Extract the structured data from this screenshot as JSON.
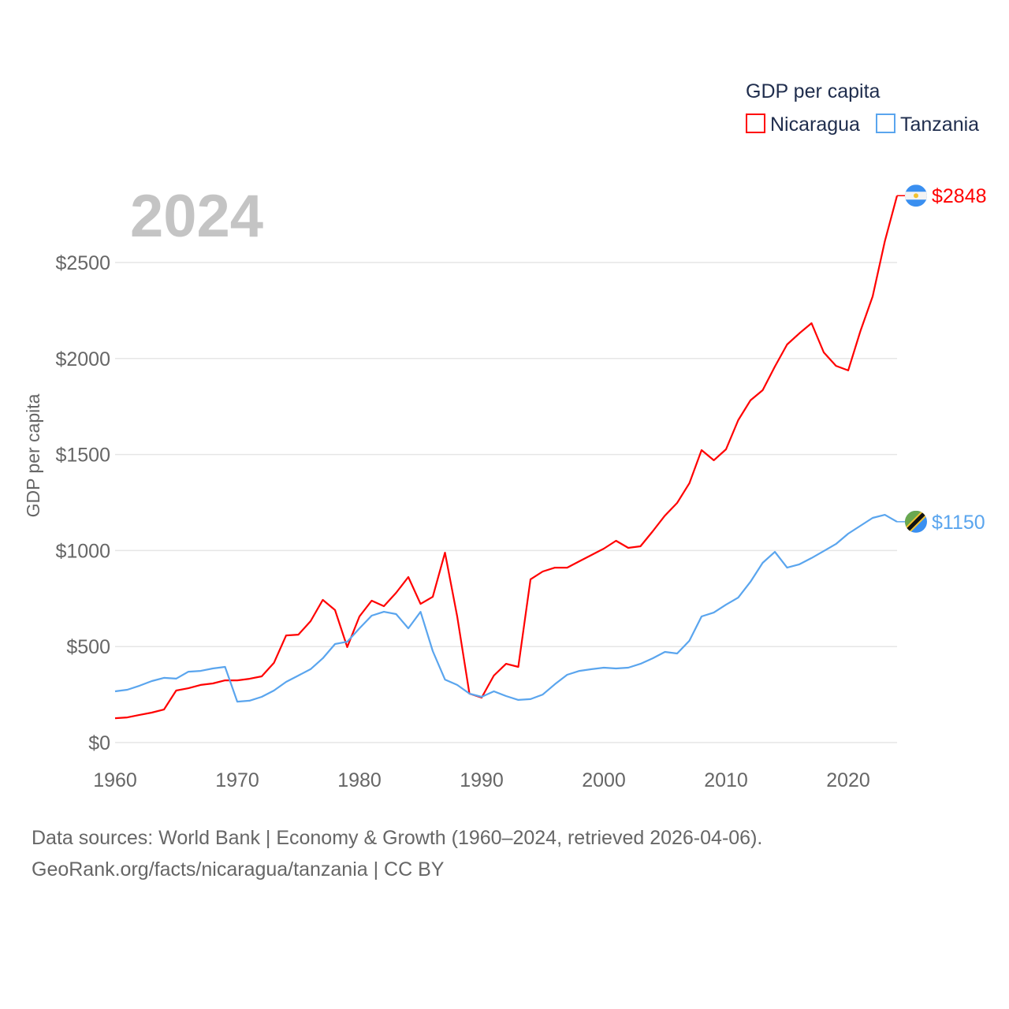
{
  "chart_data": {
    "type": "line",
    "title": "",
    "year_label": "2024",
    "xlabel": "",
    "ylabel": "GDP per capita",
    "legend_title": "GDP per capita",
    "legend_position": "top-right",
    "xlim": [
      1960,
      2024
    ],
    "ylim": [
      0,
      2900
    ],
    "x_ticks": [
      1960,
      1970,
      1980,
      1990,
      2000,
      2010,
      2020
    ],
    "y_ticks": [
      0,
      500,
      1000,
      1500,
      2000,
      2500
    ],
    "y_tick_labels": [
      "$0",
      "$500",
      "$1000",
      "$1500",
      "$2000",
      "$2500"
    ],
    "grid": true,
    "x_start": 1960,
    "series": [
      {
        "name": "Nicaragua",
        "color": "#ff0000",
        "end_label": "$2848",
        "flag": "nicaragua-flag",
        "values": [
          127,
          131,
          144,
          156,
          172,
          271,
          283,
          300,
          308,
          324,
          324,
          332,
          345,
          415,
          558,
          562,
          632,
          743,
          690,
          497,
          657,
          739,
          710,
          780,
          862,
          722,
          759,
          989,
          657,
          255,
          234,
          349,
          410,
          394,
          850,
          891,
          911,
          911,
          944,
          977,
          1010,
          1051,
          1014,
          1022,
          1100,
          1182,
          1248,
          1350,
          1523,
          1470,
          1527,
          1679,
          1782,
          1835,
          1958,
          2073,
          2131,
          2184,
          2032,
          1962,
          1938,
          2143,
          2323,
          2611,
          2848
        ]
      },
      {
        "name": "Tanzania",
        "color": "#5aa5ee",
        "end_label": "$1150",
        "flag": "tanzania-flag",
        "values": [
          267,
          275,
          296,
          320,
          337,
          333,
          369,
          373,
          386,
          394,
          213,
          218,
          238,
          271,
          316,
          349,
          382,
          439,
          513,
          525,
          595,
          661,
          681,
          669,
          595,
          681,
          476,
          328,
          300,
          255,
          238,
          267,
          242,
          222,
          226,
          250,
          304,
          353,
          373,
          382,
          390,
          386,
          390,
          410,
          439,
          472,
          464,
          530,
          657,
          677,
          718,
          755,
          837,
          936,
          993,
          911,
          928,
          961,
          997,
          1034,
          1088,
          1129,
          1170,
          1186,
          1150
        ]
      }
    ]
  },
  "footer": {
    "line1": "Data sources: World Bank | Economy & Growth (1960–2024, retrieved 2026-04-06).",
    "line2": "GeoRank.org/facts/nicaragua/tanzania | CC BY"
  }
}
